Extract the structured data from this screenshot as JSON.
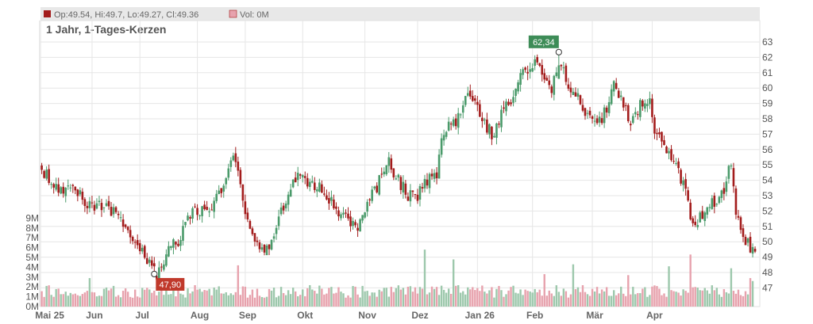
{
  "legend": {
    "ohlc": "Op:49.54, Hi:49.7, Lo:49.27, Cl:49.36",
    "volume": "Vol: 0M"
  },
  "subtitle": "1 Jahr, 1-Tages-Kerzen",
  "colors": {
    "up": "#4a9a6a",
    "down": "#a31c1c",
    "vol_up": "#9dc8ac",
    "vol_down": "#e7a2ad",
    "grid": "#e6e6e6",
    "legend_bg": "#e8e8e8",
    "high_badge": "#3d8c57",
    "low_badge": "#c0392b"
  },
  "chart_data": {
    "type": "candlestick",
    "price_axis": {
      "ylim": [
        46.3,
        64.0
      ],
      "ticks": [
        47,
        48,
        49,
        50,
        51,
        52,
        53,
        54,
        55,
        56,
        57,
        58,
        59,
        60,
        61,
        62,
        63
      ],
      "position": "right"
    },
    "volume_axis": {
      "ylim": [
        0,
        9.6
      ],
      "ticks": [
        "0M",
        "1M",
        "2M",
        "3M",
        "4M",
        "5M",
        "6M",
        "7M",
        "8M",
        "9M"
      ],
      "position": "left"
    },
    "x_labels": [
      "Mai 25",
      "Jun",
      "Jul",
      "Aug",
      "Sep",
      "Okt",
      "Nov",
      "Dez",
      "Jan 26",
      "Feb",
      "Mär",
      "Apr"
    ],
    "anchors": [
      [
        0,
        54.8
      ],
      [
        6,
        53.6
      ],
      [
        14,
        53.4
      ],
      [
        20,
        52.3
      ],
      [
        26,
        52.4
      ],
      [
        34,
        51.3
      ],
      [
        40,
        49.8
      ],
      [
        45,
        48.4
      ],
      [
        48,
        47.9
      ],
      [
        53,
        49.5
      ],
      [
        58,
        50.3
      ],
      [
        63,
        52.2
      ],
      [
        68,
        51.8
      ],
      [
        74,
        53.1
      ],
      [
        78,
        54.5
      ],
      [
        80,
        56.0
      ],
      [
        84,
        52.6
      ],
      [
        88,
        50.6
      ],
      [
        91,
        49.2
      ],
      [
        95,
        49.9
      ],
      [
        99,
        51.4
      ],
      [
        104,
        53.3
      ],
      [
        108,
        54.7
      ],
      [
        112,
        53.7
      ],
      [
        116,
        53.7
      ],
      [
        120,
        52.9
      ],
      [
        124,
        51.8
      ],
      [
        128,
        51.3
      ],
      [
        132,
        50.8
      ],
      [
        136,
        52.3
      ],
      [
        140,
        53.6
      ],
      [
        144,
        55.3
      ],
      [
        148,
        54.3
      ],
      [
        152,
        53.2
      ],
      [
        156,
        52.7
      ],
      [
        160,
        53.7
      ],
      [
        165,
        54.5
      ],
      [
        168,
        57.2
      ],
      [
        172,
        57.6
      ],
      [
        176,
        59.0
      ],
      [
        180,
        59.6
      ],
      [
        184,
        58.0
      ],
      [
        188,
        57.0
      ],
      [
        192,
        58.2
      ],
      [
        196,
        59.2
      ],
      [
        200,
        60.7
      ],
      [
        204,
        61.6
      ],
      [
        207,
        61.8
      ],
      [
        210,
        61.0
      ],
      [
        213,
        60.0
      ],
      [
        216,
        61.9
      ],
      [
        220,
        60.0
      ],
      [
        224,
        59.4
      ],
      [
        228,
        58.2
      ],
      [
        232,
        57.6
      ],
      [
        236,
        58.7
      ],
      [
        239,
        60.6
      ],
      [
        242,
        59.1
      ],
      [
        246,
        58.0
      ],
      [
        250,
        58.9
      ],
      [
        254,
        59.2
      ],
      [
        256,
        57.0
      ],
      [
        260,
        56.2
      ],
      [
        263,
        55.2
      ],
      [
        266,
        54.6
      ],
      [
        269,
        53.4
      ],
      [
        271,
        51.5
      ],
      [
        274,
        51.5
      ],
      [
        277,
        52.1
      ],
      [
        280,
        52.6
      ],
      [
        283,
        52.9
      ],
      [
        286,
        53.8
      ],
      [
        288,
        55.2
      ],
      [
        290,
        51.8
      ],
      [
        293,
        50.3
      ],
      [
        296,
        49.6
      ],
      [
        298,
        49.4
      ]
    ],
    "high": {
      "label": "62,34",
      "value": 62.34,
      "index": 216
    },
    "low": {
      "label": "47,90",
      "value": 47.9,
      "index": 47
    },
    "volume_spikes": {
      "20": 2.9,
      "46": 1.4,
      "82": 4.2,
      "120": 1.9,
      "160": 5.8,
      "172": 4.8,
      "210": 3.3,
      "222": 4.3,
      "245": 3.2,
      "262": 4.1,
      "271": 5.3,
      "288": 3.9
    },
    "last_volumes": {
      "296": 2.9,
      "297": 2.6,
      "298": 0.0
    }
  }
}
